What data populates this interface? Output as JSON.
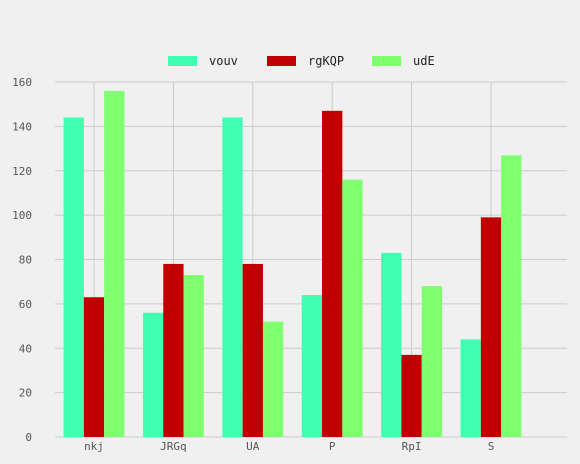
{
  "chart_data": {
    "type": "bar",
    "categories": [
      "nkj",
      "JRGq",
      "UA",
      "P",
      "RpI",
      "S"
    ],
    "series": [
      {
        "name": "vouv",
        "color": "#40ffb0",
        "values": [
          144,
          56,
          144,
          64,
          83,
          44
        ]
      },
      {
        "name": "rgKQP",
        "color": "#c00000",
        "values": [
          63,
          78,
          78,
          147,
          37,
          99
        ]
      },
      {
        "name": "udE",
        "color": "#80ff70",
        "values": [
          156,
          73,
          52,
          116,
          68,
          127
        ]
      }
    ],
    "ylim": [
      0,
      160
    ],
    "yticks": [
      0,
      20,
      40,
      60,
      80,
      100,
      120,
      140,
      160
    ],
    "grid": true,
    "legend_position": "top-center",
    "title": "",
    "xlabel": "",
    "ylabel": ""
  }
}
